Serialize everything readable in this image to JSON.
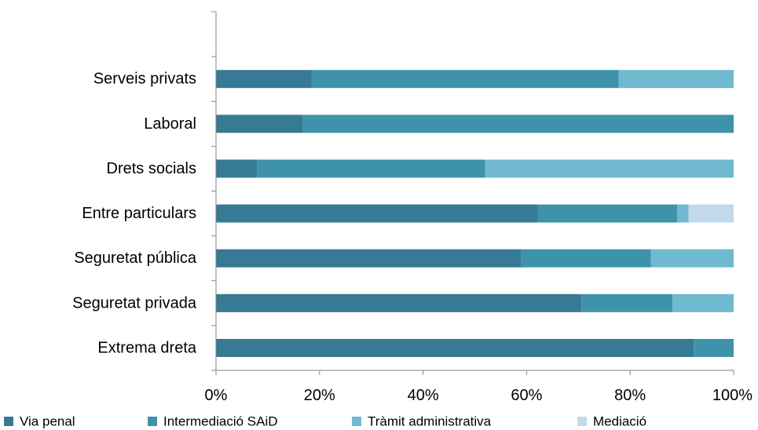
{
  "chart_data": {
    "type": "bar",
    "orientation": "horizontal",
    "stacked": "percent",
    "categories": [
      "Extrema dreta",
      "Seguretat privada",
      "Seguretat pública",
      "Entre particulars",
      "Drets socials",
      "Laboral",
      "Serveis privats"
    ],
    "series": [
      {
        "name": "Via penal",
        "color": "#367a93",
        "values": [
          92.3,
          70.6,
          59.0,
          62.2,
          8.0,
          16.7,
          18.5
        ]
      },
      {
        "name": "Intermediació SAiD",
        "color": "#3e93ab",
        "values": [
          7.7,
          17.6,
          25.0,
          26.9,
          44.0,
          83.3,
          59.3
        ]
      },
      {
        "name": "Tràmit administrativa",
        "color": "#70b9cf",
        "values": [
          0,
          11.8,
          16.0,
          2.2,
          48.0,
          0,
          22.2
        ]
      },
      {
        "name": "Mediació",
        "color": "#c2d9ec",
        "values": [
          0,
          0,
          0,
          8.7,
          0,
          0,
          0
        ]
      }
    ],
    "xlim": [
      0,
      100
    ],
    "xticks": [
      "0%",
      "20%",
      "40%",
      "60%",
      "80%",
      "100%"
    ],
    "title": "",
    "xlabel": "",
    "ylabel": "",
    "grid": false,
    "legend_position": "bottom"
  }
}
